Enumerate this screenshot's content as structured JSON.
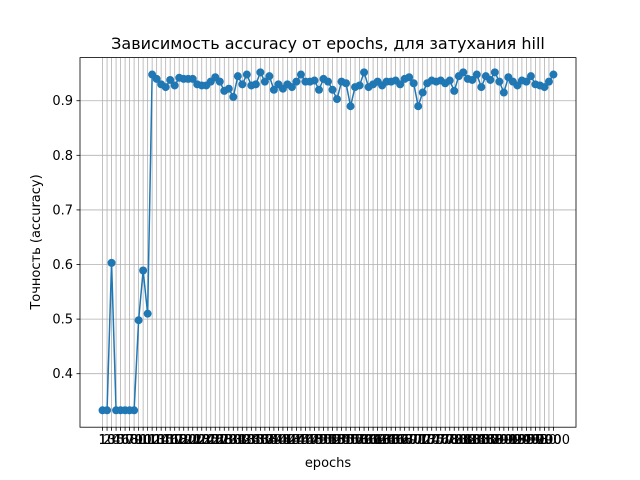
{
  "chart_data": {
    "type": "line",
    "title": "Зависимость accuracy от epochs, для затухания hill",
    "x_label": "epochs",
    "y_label": "Точность (accuracy)",
    "categories": [
      "1",
      "10",
      "20",
      "30",
      "40",
      "50",
      "60",
      "70",
      "80",
      "90",
      "100",
      "110",
      "120",
      "130",
      "140",
      "150",
      "160",
      "170",
      "180",
      "190",
      "200",
      "210",
      "220",
      "230",
      "240",
      "250",
      "260",
      "270",
      "280",
      "290",
      "300",
      "310",
      "320",
      "330",
      "340",
      "350",
      "360",
      "370",
      "380",
      "390",
      "400",
      "410",
      "420",
      "430",
      "440",
      "450",
      "460",
      "470",
      "480",
      "490",
      "500",
      "510",
      "520",
      "530",
      "540",
      "550",
      "560",
      "570",
      "580",
      "590",
      "600",
      "610",
      "620",
      "630",
      "640",
      "650",
      "660",
      "670",
      "680",
      "690",
      "700",
      "710",
      "720",
      "730",
      "740",
      "750",
      "760",
      "770",
      "780",
      "790",
      "800",
      "810",
      "820",
      "830",
      "840",
      "850",
      "860",
      "870",
      "880",
      "890",
      "900",
      "910",
      "920",
      "930",
      "940",
      "950",
      "960",
      "970",
      "980",
      "990",
      "1000"
    ],
    "series": [
      {
        "name": "accuracy",
        "color": "#1f77b4",
        "values": [
          0.333,
          0.333,
          0.603,
          0.333,
          0.333,
          0.333,
          0.333,
          0.333,
          0.498,
          0.589,
          0.51,
          0.948,
          0.94,
          0.93,
          0.925,
          0.938,
          0.928,
          0.942,
          0.94,
          0.94,
          0.94,
          0.93,
          0.928,
          0.928,
          0.935,
          0.943,
          0.935,
          0.918,
          0.922,
          0.907,
          0.945,
          0.93,
          0.948,
          0.928,
          0.93,
          0.952,
          0.935,
          0.945,
          0.92,
          0.93,
          0.922,
          0.93,
          0.925,
          0.935,
          0.948,
          0.935,
          0.935,
          0.937,
          0.92,
          0.94,
          0.935,
          0.92,
          0.903,
          0.935,
          0.932,
          0.89,
          0.925,
          0.928,
          0.952,
          0.925,
          0.93,
          0.935,
          0.928,
          0.935,
          0.935,
          0.937,
          0.93,
          0.94,
          0.943,
          0.932,
          0.89,
          0.915,
          0.932,
          0.937,
          0.935,
          0.937,
          0.932,
          0.937,
          0.918,
          0.945,
          0.952,
          0.94,
          0.938,
          0.948,
          0.925,
          0.945,
          0.938,
          0.952,
          0.935,
          0.915,
          0.943,
          0.935,
          0.928,
          0.937,
          0.935,
          0.945,
          0.93,
          0.928,
          0.925,
          0.935,
          0.948
        ]
      }
    ],
    "ylim": [
      0.302,
      0.979
    ],
    "yticks": [
      0.4,
      0.5,
      0.6,
      0.7,
      0.8,
      0.9
    ],
    "grid": true,
    "markers": true
  }
}
